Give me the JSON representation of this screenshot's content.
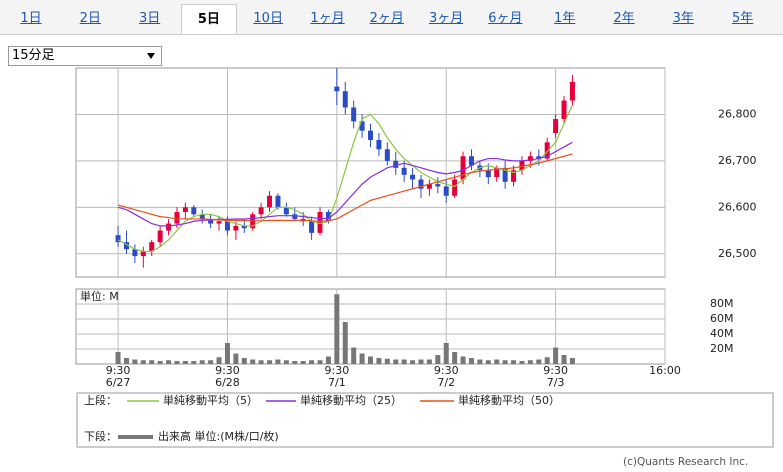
{
  "tabs": {
    "items": [
      "1日",
      "2日",
      "3日",
      "5日",
      "10日",
      "1ヶ月",
      "2ヶ月",
      "3ヶ月",
      "6ヶ月",
      "1年",
      "2年",
      "3年",
      "5年"
    ],
    "selected": 3
  },
  "dropdown": "15分足",
  "legend": {
    "upper": "上段：",
    "lower": "下段："
  },
  "copyright": "(c)Quants Research Inc.",
  "chart_data": [
    {
      "type": "candlestick",
      "up_color": "#e4003a",
      "down_color": "#2a4bc8",
      "grid": true,
      "xlim": [
        -10,
        130
      ],
      "xticks": [
        {
          "value": 0,
          "label": "9:30"
        },
        {
          "value": 26,
          "label": "9:30"
        },
        {
          "value": 52,
          "label": "9:30"
        },
        {
          "value": 78,
          "label": "9:30"
        },
        {
          "value": 104,
          "label": "9:30"
        },
        {
          "value": 130,
          "label": "16:00"
        }
      ],
      "xtick_dates": [
        "6/27",
        "6/28",
        "7/1",
        "7/2",
        "7/3"
      ],
      "ylim": [
        26450,
        26900
      ],
      "yticks": [
        {
          "value": 26500,
          "label": "26,500"
        },
        {
          "value": 26600,
          "label": "26,600"
        },
        {
          "value": 26700,
          "label": "26,700"
        },
        {
          "value": 26800,
          "label": "26,800"
        }
      ],
      "x": [
        0,
        2,
        4,
        6,
        8,
        10,
        12,
        14,
        16,
        18,
        20,
        22,
        24,
        26,
        28,
        30,
        32,
        34,
        36,
        38,
        40,
        42,
        44,
        46,
        48,
        50,
        52,
        54,
        56,
        58,
        60,
        62,
        64,
        66,
        68,
        70,
        72,
        74,
        76,
        78,
        80,
        82,
        84,
        86,
        88,
        90,
        92,
        94,
        96,
        98,
        100,
        102,
        104,
        106,
        108
      ],
      "open": [
        26540,
        26525,
        26510,
        26495,
        26505,
        26525,
        26550,
        26565,
        26590,
        26600,
        26585,
        26575,
        26565,
        26570,
        26550,
        26560,
        26555,
        26585,
        26600,
        26625,
        26600,
        26585,
        26575,
        26570,
        26545,
        26590,
        26860,
        26850,
        26815,
        26785,
        26765,
        26745,
        26725,
        26700,
        26685,
        26670,
        26660,
        26640,
        26650,
        26645,
        26625,
        26660,
        26710,
        26690,
        26680,
        26665,
        26685,
        26655,
        26680,
        26700,
        26710,
        26705,
        26760,
        26790,
        26830
      ],
      "high": [
        26560,
        26550,
        26520,
        26515,
        26530,
        26560,
        26575,
        26600,
        26610,
        26605,
        26595,
        26585,
        26580,
        26580,
        26570,
        26575,
        26590,
        26610,
        26635,
        26630,
        26610,
        26600,
        26590,
        26580,
        26600,
        26595,
        26900,
        26870,
        26830,
        26800,
        26780,
        26760,
        26740,
        26720,
        26700,
        26685,
        26670,
        26660,
        26665,
        26660,
        26670,
        26720,
        26725,
        26700,
        26695,
        26690,
        26700,
        26690,
        26710,
        26720,
        26725,
        26750,
        26800,
        26840,
        26885
      ],
      "low": [
        26515,
        26500,
        26480,
        26470,
        26495,
        26515,
        26540,
        26555,
        26575,
        26580,
        26565,
        26555,
        26550,
        26540,
        26530,
        26545,
        26550,
        26575,
        26590,
        26595,
        26580,
        26570,
        26560,
        26530,
        26540,
        26565,
        26820,
        26800,
        26770,
        26750,
        26730,
        26710,
        26690,
        26670,
        26655,
        26640,
        26620,
        26625,
        26630,
        26610,
        26620,
        26650,
        26680,
        26665,
        26650,
        26655,
        26640,
        26645,
        26670,
        26685,
        26690,
        26700,
        26750,
        26780,
        26820
      ],
      "close": [
        26525,
        26510,
        26495,
        26505,
        26525,
        26550,
        26565,
        26590,
        26600,
        26585,
        26575,
        26565,
        26570,
        26550,
        26560,
        26555,
        26585,
        26600,
        26625,
        26600,
        26585,
        26575,
        26570,
        26545,
        26590,
        26570,
        26850,
        26815,
        26785,
        26765,
        26745,
        26725,
        26700,
        26685,
        26670,
        26660,
        26640,
        26650,
        26645,
        26625,
        26660,
        26710,
        26690,
        26680,
        26665,
        26685,
        26655,
        26680,
        26700,
        26710,
        26705,
        26740,
        26790,
        26830,
        26870
      ],
      "series": [
        {
          "name": "単純移動平均（5）",
          "color": "#8cc63f",
          "values": [
            26530,
            26520,
            26510,
            26505,
            26505,
            26515,
            26530,
            26550,
            26570,
            26580,
            26585,
            26585,
            26580,
            26570,
            26565,
            26560,
            26560,
            26570,
            26585,
            26600,
            26600,
            26595,
            26585,
            26570,
            26565,
            26570,
            26620,
            26680,
            26740,
            26790,
            26800,
            26780,
            26750,
            26725,
            26705,
            26690,
            26675,
            26665,
            26655,
            26650,
            26645,
            26660,
            26675,
            26685,
            26690,
            26685,
            26680,
            26675,
            26680,
            26690,
            26700,
            26720,
            26740,
            26780,
            26820
          ]
        },
        {
          "name": "単純移動平均（25）",
          "color": "#8a2be2",
          "values": [
            26600,
            26595,
            26585,
            26575,
            26565,
            26560,
            26560,
            26562,
            26565,
            26570,
            26572,
            26573,
            26574,
            26574,
            26575,
            26575,
            26576,
            26578,
            26580,
            26582,
            26582,
            26582,
            26580,
            26578,
            26576,
            26576,
            26590,
            26610,
            26630,
            26650,
            26665,
            26675,
            26685,
            26690,
            26695,
            26690,
            26685,
            26680,
            26675,
            26672,
            26675,
            26680,
            26690,
            26700,
            26705,
            26705,
            26702,
            26700,
            26700,
            26702,
            26705,
            26710,
            26720,
            26730,
            26740
          ]
        },
        {
          "name": "単純移動平均（50）",
          "color": "#e8501a",
          "values": [
            26605,
            26600,
            26595,
            26590,
            26585,
            26580,
            26578,
            26575,
            26575,
            26575,
            26575,
            26574,
            26573,
            26572,
            26572,
            26572,
            26571,
            26571,
            26572,
            26572,
            26572,
            26572,
            26572,
            26571,
            26570,
            26571,
            26575,
            26585,
            26595,
            26605,
            26615,
            26620,
            26625,
            26630,
            26635,
            26640,
            26645,
            26650,
            26655,
            26660,
            26665,
            26670,
            26675,
            26678,
            26680,
            26682,
            26683,
            26685,
            26688,
            26692,
            26695,
            26700,
            26705,
            26710,
            26715
          ]
        }
      ]
    },
    {
      "type": "bar",
      "name": "出来高 単位:(M株/口/枚)",
      "unit_label": "単位: M",
      "color": "#777777",
      "grid": true,
      "ylim": [
        0,
        100
      ],
      "yticks": [
        {
          "value": 20,
          "label": "20M"
        },
        {
          "value": 40,
          "label": "40M"
        },
        {
          "value": 60,
          "label": "60M"
        },
        {
          "value": 80,
          "label": "80M"
        }
      ],
      "values": [
        16,
        8,
        6,
        5,
        5,
        4,
        5,
        4,
        4,
        4,
        5,
        5,
        9,
        28,
        14,
        8,
        6,
        5,
        5,
        6,
        5,
        4,
        4,
        5,
        5,
        10,
        93,
        56,
        22,
        14,
        10,
        8,
        7,
        6,
        6,
        5,
        6,
        6,
        12,
        28,
        16,
        10,
        8,
        6,
        5,
        6,
        5,
        5,
        4,
        5,
        6,
        9,
        22,
        12,
        8
      ]
    }
  ]
}
